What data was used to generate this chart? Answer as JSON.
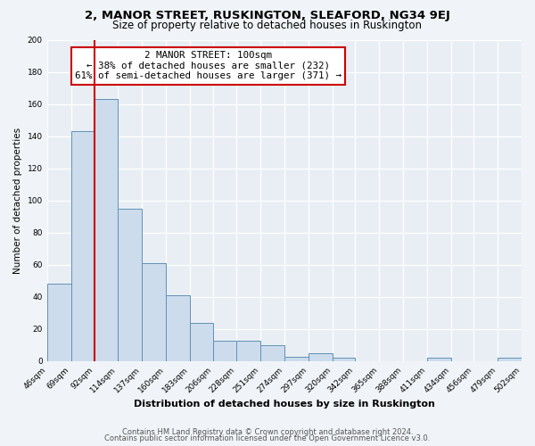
{
  "title": "2, MANOR STREET, RUSKINGTON, SLEAFORD, NG34 9EJ",
  "subtitle": "Size of property relative to detached houses in Ruskington",
  "xlabel": "Distribution of detached houses by size in Ruskington",
  "ylabel": "Number of detached properties",
  "bin_edges": [
    46,
    69,
    92,
    114,
    137,
    160,
    183,
    206,
    228,
    251,
    274,
    297,
    320,
    342,
    365,
    388,
    411,
    434,
    456,
    479,
    502
  ],
  "bar_heights": [
    48,
    143,
    163,
    95,
    61,
    41,
    24,
    13,
    13,
    10,
    3,
    5,
    2,
    0,
    0,
    0,
    2,
    0,
    0,
    2
  ],
  "bar_color": "#ccdcec",
  "bar_edge_color": "#6090b8",
  "vline_x": 92,
  "vline_color": "#cc0000",
  "annotation_line1": "2 MANOR STREET: 100sqm",
  "annotation_line2": "← 38% of detached houses are smaller (232)",
  "annotation_line3": "61% of semi-detached houses are larger (371) →",
  "annotation_box_color": "#ffffff",
  "annotation_box_edge": "#cc0000",
  "ylim": [
    0,
    200
  ],
  "yticks": [
    0,
    20,
    40,
    60,
    80,
    100,
    120,
    140,
    160,
    180,
    200
  ],
  "tick_labels": [
    "46sqm",
    "69sqm",
    "92sqm",
    "114sqm",
    "137sqm",
    "160sqm",
    "183sqm",
    "206sqm",
    "228sqm",
    "251sqm",
    "274sqm",
    "297sqm",
    "320sqm",
    "342sqm",
    "365sqm",
    "388sqm",
    "411sqm",
    "434sqm",
    "456sqm",
    "479sqm",
    "502sqm"
  ],
  "footnote1": "Contains HM Land Registry data © Crown copyright and database right 2024.",
  "footnote2": "Contains public sector information licensed under the Open Government Licence v3.0.",
  "bg_color": "#f0f4f8",
  "plot_bg_color": "#e8eef4"
}
